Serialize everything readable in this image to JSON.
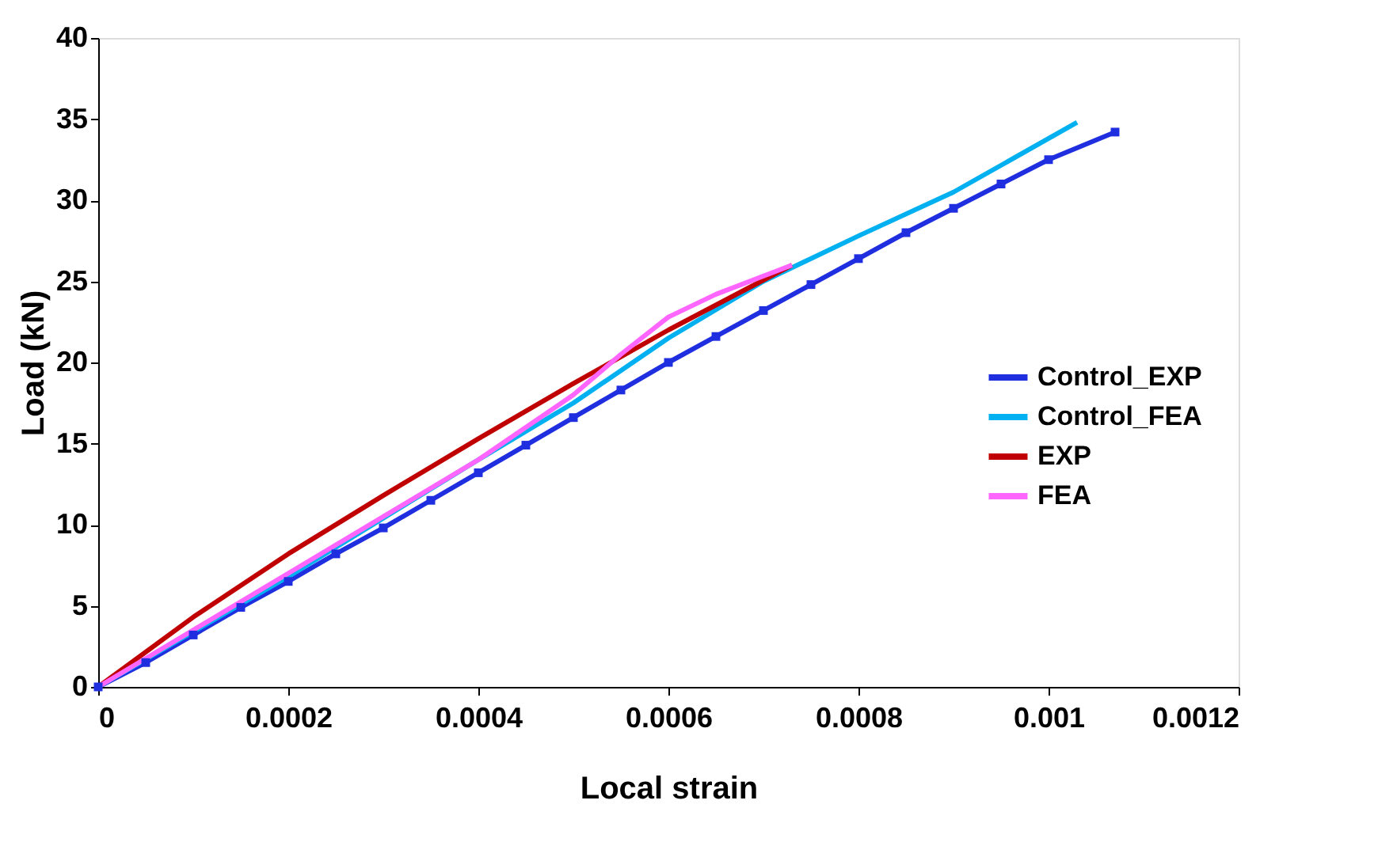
{
  "chart_data": {
    "type": "line",
    "xlabel": "Local strain",
    "ylabel": "Load (kN)",
    "xlim": [
      0,
      0.0012
    ],
    "xticks": [
      0,
      0.0002,
      0.0004,
      0.0006,
      0.0008,
      0.001,
      0.0012
    ],
    "ylim": [
      0,
      40
    ],
    "yticks": [
      0,
      5,
      10,
      15,
      20,
      25,
      30,
      35,
      40
    ],
    "grid": false,
    "legend": "right",
    "series": [
      {
        "name": "Control_EXP",
        "color": "#1f2fe0",
        "marker": "square",
        "x": [
          0,
          5e-05,
          0.0001,
          0.00015,
          0.0002,
          0.00025,
          0.0003,
          0.00035,
          0.0004,
          0.00045,
          0.0005,
          0.00055,
          0.0006,
          0.00065,
          0.0007,
          0.00075,
          0.0008,
          0.00085,
          0.0009,
          0.00095,
          0.001,
          0.00107
        ],
        "values": [
          0,
          1.5,
          3.2,
          4.9,
          6.5,
          8.2,
          9.8,
          11.5,
          13.2,
          14.9,
          16.6,
          18.3,
          20,
          21.6,
          23.2,
          24.8,
          26.4,
          28,
          29.5,
          31,
          32.5,
          34.2
        ]
      },
      {
        "name": "Control_FEA",
        "color": "#00b0f0",
        "marker": "none",
        "x": [
          0,
          0.0002,
          0.0004,
          0.0005,
          0.0006,
          0.0007,
          0.0008,
          0.0009,
          0.00103
        ],
        "values": [
          0,
          6.8,
          14,
          17.5,
          21.5,
          25,
          27.8,
          30.5,
          34.8
        ]
      },
      {
        "name": "EXP",
        "color": "#c00000",
        "marker": "none",
        "x": [
          0,
          0.0001,
          0.0002,
          0.0003,
          0.0004,
          0.0005,
          0.0006,
          0.00073
        ],
        "values": [
          0,
          4.3,
          8.2,
          11.8,
          15.3,
          18.7,
          22,
          26
        ]
      },
      {
        "name": "FEA",
        "color": "#ff66ff",
        "marker": "none",
        "x": [
          0,
          0.0002,
          0.0004,
          0.0005,
          0.00055,
          0.0006,
          0.00065,
          0.00073
        ],
        "values": [
          0,
          7,
          14,
          18,
          20.5,
          22.8,
          24.2,
          26
        ]
      }
    ]
  }
}
